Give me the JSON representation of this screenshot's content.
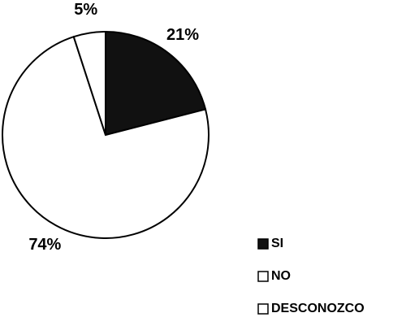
{
  "chart_data": {
    "type": "pie",
    "categories": [
      "SI",
      "NO",
      "DESCONOZCO"
    ],
    "values": [
      21,
      74,
      5
    ],
    "value_labels": [
      "21%",
      "74%",
      "5%"
    ],
    "colors": [
      "#111111",
      "#ffffff",
      "#ffffff"
    ]
  }
}
